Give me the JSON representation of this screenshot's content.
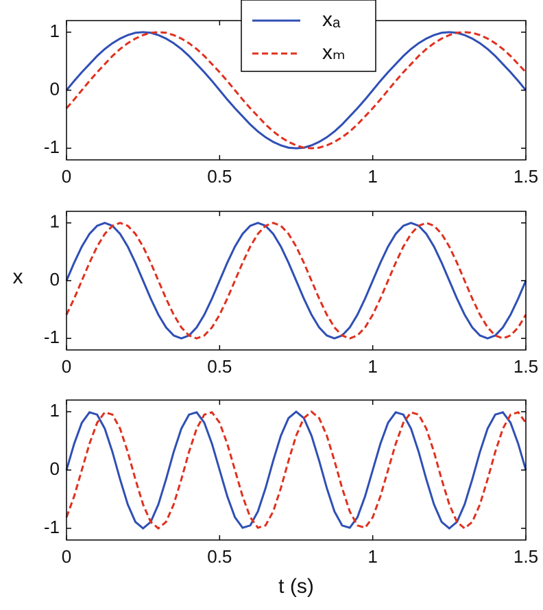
{
  "chart_data": [
    {
      "type": "line",
      "legend": "top-center",
      "x": [
        0,
        0.025,
        0.05,
        0.075,
        0.1,
        0.125,
        0.15,
        0.175,
        0.2,
        0.225,
        0.25,
        0.275,
        0.3,
        0.325,
        0.35,
        0.375,
        0.4,
        0.425,
        0.45,
        0.475,
        0.5,
        0.525,
        0.55,
        0.575,
        0.6,
        0.625,
        0.65,
        0.675,
        0.7,
        0.725,
        0.75,
        0.775,
        0.8,
        0.825,
        0.85,
        0.875,
        0.9,
        0.925,
        0.95,
        0.975,
        1,
        1.025,
        1.05,
        1.075,
        1.1,
        1.125,
        1.15,
        1.175,
        1.2,
        1.225,
        1.25,
        1.275,
        1.3,
        1.325,
        1.35,
        1.375,
        1.4,
        1.425,
        1.45,
        1.475,
        1.5
      ],
      "series": [
        {
          "name": "xₐ",
          "color": "#2f4fb5",
          "linestyle": "solid",
          "values": [
            0,
            0.16,
            0.31,
            0.45,
            0.59,
            0.71,
            0.81,
            0.89,
            0.95,
            0.99,
            1,
            0.99,
            0.95,
            0.89,
            0.81,
            0.71,
            0.59,
            0.45,
            0.31,
            0.16,
            0,
            -0.16,
            -0.31,
            -0.45,
            -0.59,
            -0.71,
            -0.81,
            -0.89,
            -0.95,
            -0.99,
            -1,
            -0.99,
            -0.95,
            -0.89,
            -0.81,
            -0.71,
            -0.59,
            -0.45,
            -0.31,
            -0.16,
            0,
            0.16,
            0.31,
            0.45,
            0.59,
            0.71,
            0.81,
            0.89,
            0.95,
            0.99,
            1,
            0.99,
            0.95,
            0.89,
            0.81,
            0.71,
            0.59,
            0.45,
            0.31,
            0.16,
            0
          ]
        },
        {
          "name": "xₘ",
          "color": "#e0301e",
          "linestyle": "dashed",
          "values": [
            -0.31,
            -0.16,
            0,
            0.16,
            0.31,
            0.45,
            0.59,
            0.71,
            0.81,
            0.89,
            0.95,
            0.99,
            1,
            0.99,
            0.95,
            0.89,
            0.81,
            0.71,
            0.59,
            0.45,
            0.31,
            0.16,
            0,
            -0.16,
            -0.31,
            -0.45,
            -0.59,
            -0.71,
            -0.81,
            -0.89,
            -0.95,
            -0.99,
            -1,
            -0.99,
            -0.95,
            -0.89,
            -0.81,
            -0.71,
            -0.59,
            -0.45,
            -0.31,
            -0.16,
            0,
            0.16,
            0.31,
            0.45,
            0.59,
            0.71,
            0.81,
            0.89,
            0.95,
            0.99,
            1,
            0.99,
            0.95,
            0.89,
            0.81,
            0.71,
            0.59,
            0.45,
            0.31
          ]
        }
      ],
      "xlim": [
        0,
        1.5
      ],
      "xticks": [
        0,
        0.5,
        1,
        1.5
      ],
      "ylim": [
        -1.2,
        1.2
      ],
      "yticks": [
        -1,
        0,
        1
      ]
    },
    {
      "type": "line",
      "y_label": "x",
      "x": [
        0,
        0.025,
        0.05,
        0.075,
        0.1,
        0.125,
        0.15,
        0.175,
        0.2,
        0.225,
        0.25,
        0.275,
        0.3,
        0.325,
        0.35,
        0.375,
        0.4,
        0.425,
        0.45,
        0.475,
        0.5,
        0.525,
        0.55,
        0.575,
        0.6,
        0.625,
        0.65,
        0.675,
        0.7,
        0.725,
        0.75,
        0.775,
        0.8,
        0.825,
        0.85,
        0.875,
        0.9,
        0.925,
        0.95,
        0.975,
        1,
        1.025,
        1.05,
        1.075,
        1.1,
        1.125,
        1.15,
        1.175,
        1.2,
        1.225,
        1.25,
        1.275,
        1.3,
        1.325,
        1.35,
        1.375,
        1.4,
        1.425,
        1.45,
        1.475,
        1.5
      ],
      "series": [
        {
          "color": "#2f4fb5",
          "linestyle": "solid",
          "values": [
            0,
            0.31,
            0.59,
            0.81,
            0.95,
            1,
            0.95,
            0.81,
            0.59,
            0.31,
            0,
            -0.31,
            -0.59,
            -0.81,
            -0.95,
            -1,
            -0.95,
            -0.81,
            -0.59,
            -0.31,
            0,
            0.31,
            0.59,
            0.81,
            0.95,
            1,
            0.95,
            0.81,
            0.59,
            0.31,
            0,
            -0.31,
            -0.59,
            -0.81,
            -0.95,
            -1,
            -0.95,
            -0.81,
            -0.59,
            -0.31,
            0,
            0.31,
            0.59,
            0.81,
            0.95,
            1,
            0.95,
            0.81,
            0.59,
            0.31,
            0,
            -0.31,
            -0.59,
            -0.81,
            -0.95,
            -1,
            -0.95,
            -0.81,
            -0.59,
            -0.31,
            0
          ]
        },
        {
          "color": "#e0301e",
          "linestyle": "dashed",
          "values": [
            -0.59,
            -0.31,
            0,
            0.31,
            0.59,
            0.81,
            0.95,
            1,
            0.95,
            0.81,
            0.59,
            0.31,
            0,
            -0.31,
            -0.59,
            -0.81,
            -0.95,
            -1,
            -0.95,
            -0.81,
            -0.59,
            -0.31,
            0,
            0.31,
            0.59,
            0.81,
            0.95,
            1,
            0.95,
            0.81,
            0.59,
            0.31,
            0,
            -0.31,
            -0.59,
            -0.81,
            -0.95,
            -1,
            -0.95,
            -0.81,
            -0.59,
            -0.31,
            0,
            0.31,
            0.59,
            0.81,
            0.95,
            1,
            0.95,
            0.81,
            0.59,
            0.31,
            0,
            -0.31,
            -0.59,
            -0.81,
            -0.95,
            -1,
            -0.95,
            -0.81,
            -0.59
          ]
        }
      ],
      "xlim": [
        0,
        1.5
      ],
      "xticks": [
        0,
        0.5,
        1,
        1.5
      ],
      "ylim": [
        -1.2,
        1.2
      ],
      "yticks": [
        -1,
        0,
        1
      ]
    },
    {
      "type": "line",
      "x_label": "t (s)",
      "x": [
        0,
        0.025,
        0.05,
        0.075,
        0.1,
        0.125,
        0.15,
        0.175,
        0.2,
        0.225,
        0.25,
        0.275,
        0.3,
        0.325,
        0.35,
        0.375,
        0.4,
        0.425,
        0.45,
        0.475,
        0.5,
        0.525,
        0.55,
        0.575,
        0.6,
        0.625,
        0.65,
        0.675,
        0.7,
        0.725,
        0.75,
        0.775,
        0.8,
        0.825,
        0.85,
        0.875,
        0.9,
        0.925,
        0.95,
        0.975,
        1,
        1.025,
        1.05,
        1.075,
        1.1,
        1.125,
        1.15,
        1.175,
        1.2,
        1.225,
        1.25,
        1.275,
        1.3,
        1.325,
        1.35,
        1.375,
        1.4,
        1.425,
        1.45,
        1.475,
        1.5
      ],
      "series": [
        {
          "color": "#2f4fb5",
          "linestyle": "solid",
          "values": [
            0,
            0.45,
            0.81,
            0.99,
            0.95,
            0.71,
            0.31,
            -0.16,
            -0.59,
            -0.89,
            -1,
            -0.89,
            -0.59,
            -0.16,
            0.31,
            0.71,
            0.95,
            0.99,
            0.81,
            0.45,
            0,
            -0.45,
            -0.81,
            -0.99,
            -0.95,
            -0.71,
            -0.31,
            0.16,
            0.59,
            0.89,
            1,
            0.89,
            0.59,
            0.16,
            -0.31,
            -0.71,
            -0.95,
            -0.99,
            -0.81,
            -0.45,
            0,
            0.45,
            0.81,
            0.99,
            0.95,
            0.71,
            0.31,
            -0.16,
            -0.59,
            -0.89,
            -1,
            -0.89,
            -0.59,
            -0.16,
            0.31,
            0.71,
            0.95,
            0.99,
            0.81,
            0.45,
            0
          ]
        },
        {
          "color": "#e0301e",
          "linestyle": "dashed",
          "values": [
            -0.81,
            -0.45,
            0,
            0.45,
            0.81,
            0.99,
            0.95,
            0.71,
            0.31,
            -0.16,
            -0.59,
            -0.89,
            -1,
            -0.89,
            -0.59,
            -0.16,
            0.31,
            0.71,
            0.95,
            0.99,
            0.81,
            0.45,
            0,
            -0.45,
            -0.81,
            -0.99,
            -0.95,
            -0.71,
            -0.31,
            0.16,
            0.59,
            0.89,
            1,
            0.89,
            0.59,
            0.16,
            -0.31,
            -0.71,
            -0.95,
            -0.99,
            -0.81,
            -0.45,
            0,
            0.45,
            0.81,
            0.99,
            0.95,
            0.71,
            0.31,
            -0.16,
            -0.59,
            -0.89,
            -1,
            -0.89,
            -0.59,
            -0.16,
            0.31,
            0.71,
            0.95,
            0.99,
            0.81
          ]
        }
      ],
      "xlim": [
        0,
        1.5
      ],
      "xticks": [
        0,
        0.5,
        1,
        1.5
      ],
      "ylim": [
        -1.2,
        1.2
      ],
      "yticks": [
        -1,
        0,
        1
      ]
    }
  ]
}
